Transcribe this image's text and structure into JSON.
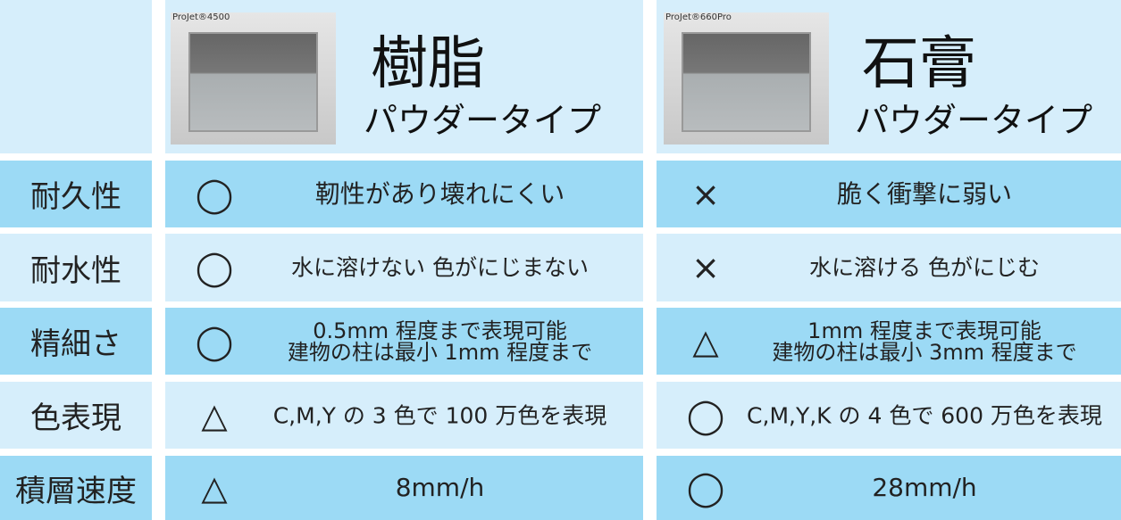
{
  "header": {
    "columns": [
      {
        "image_caption": "ProJet®4500",
        "title": "樹脂",
        "subtitle": "パウダータイプ"
      },
      {
        "image_caption": "ProJet®660Pro",
        "title": "石膏",
        "subtitle": "パウダータイプ"
      }
    ]
  },
  "rows": [
    {
      "label": "耐久性",
      "cells": [
        {
          "mark": "◯",
          "lines": [
            "靭性があり壊れにくい"
          ]
        },
        {
          "mark": "×",
          "lines": [
            "脆く衝撃に弱い"
          ]
        }
      ]
    },
    {
      "label": "耐水性",
      "cells": [
        {
          "mark": "◯",
          "lines": [
            "水に溶けない  色がにじまない"
          ]
        },
        {
          "mark": "×",
          "lines": [
            "水に溶ける  色がにじむ"
          ]
        }
      ]
    },
    {
      "label": "精細さ",
      "cells": [
        {
          "mark": "◯",
          "lines": [
            "0.5mm 程度まで表現可能",
            "建物の柱は最小 1mm 程度まで"
          ]
        },
        {
          "mark": "△",
          "lines": [
            "1mm 程度まで表現可能",
            "建物の柱は最小 3mm 程度まで"
          ]
        }
      ]
    },
    {
      "label": "色表現",
      "cells": [
        {
          "mark": "△",
          "lines": [
            "C,M,Y の 3 色で 100 万色を表現"
          ]
        },
        {
          "mark": "◯",
          "lines": [
            "C,M,Y,K の 4 色で 600 万色を表現"
          ]
        }
      ]
    },
    {
      "label": "積層速度",
      "cells": [
        {
          "mark": "△",
          "lines": [
            "8mm/h"
          ]
        },
        {
          "mark": "◯",
          "lines": [
            "28mm/h"
          ]
        }
      ]
    }
  ]
}
